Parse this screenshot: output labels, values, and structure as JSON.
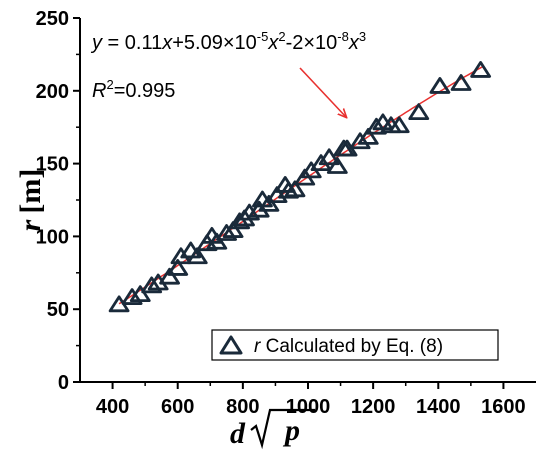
{
  "chart_data": {
    "type": "scatter",
    "xlabel": {
      "base": "d",
      "radicand": "p"
    },
    "ylabel": {
      "symbol": "r",
      "unit": "[m]"
    },
    "xlim": [
      300,
      1700
    ],
    "ylim": [
      0,
      250
    ],
    "x_ticks": [
      "400",
      "600",
      "800",
      "1000",
      "1200",
      "1400",
      "1600"
    ],
    "x_tick_values": [
      400,
      600,
      800,
      1000,
      1200,
      1400,
      1600
    ],
    "y_ticks": [
      "0",
      "50",
      "100",
      "150",
      "200",
      "250"
    ],
    "y_tick_values": [
      0,
      50,
      100,
      150,
      200,
      250
    ],
    "grid": false,
    "legend": {
      "position": "bottom-right",
      "symbol": "triangle",
      "label_symbol": "r",
      "label_text": " Calculated by Eq. (8)"
    },
    "equation": {
      "y": "y",
      "eq": " = 0.11",
      "x1": "x",
      "t2": "+5.09×10",
      "e2": "-5",
      "x2": "x",
      "p2": "2",
      "t3": "-2×10",
      "e3": "-8",
      "x3": "x",
      "p3": "3"
    },
    "r_squared": {
      "R": "R",
      "pow": "2",
      "value": "=0.995"
    },
    "fit": {
      "coefficients": [
        0,
        0.11,
        5.09e-05,
        -2e-08
      ],
      "x_range": [
        420,
        1540
      ],
      "color": "#e8312f"
    },
    "marker_color": "#1a2a3a",
    "arrow_color": "#e8312f",
    "series": [
      {
        "x": [
          420,
          460,
          485,
          520,
          540,
          575,
          600,
          610,
          640,
          660,
          690,
          705,
          720,
          750,
          770,
          790,
          805,
          820,
          850,
          860,
          880,
          905,
          930,
          940,
          960,
          990,
          1010,
          1040,
          1065,
          1090,
          1110,
          1120,
          1160,
          1185,
          1210,
          1230,
          1255,
          1280,
          1340,
          1405,
          1470,
          1530
        ],
        "y": [
          53,
          58,
          60,
          66,
          68,
          72,
          78,
          86,
          90,
          86,
          95,
          100,
          96,
          102,
          104,
          110,
          112,
          116,
          118,
          125,
          122,
          128,
          135,
          131,
          132,
          140,
          145,
          150,
          154,
          148,
          160,
          160,
          165,
          168,
          175,
          178,
          176,
          176,
          185,
          203,
          205,
          214
        ]
      }
    ]
  }
}
